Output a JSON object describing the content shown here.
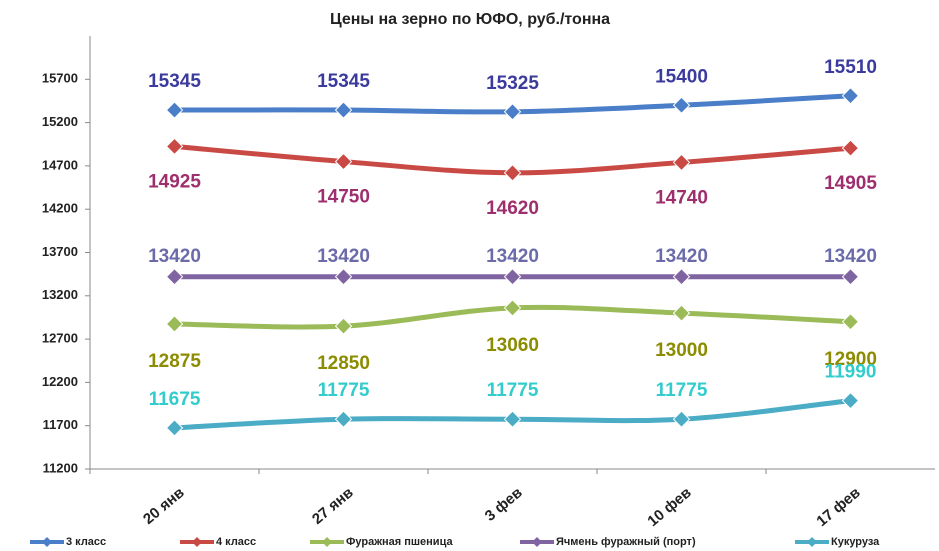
{
  "chart_data": {
    "type": "line",
    "title": "Цены на зерно по ЮФО, руб./тонна",
    "categories": [
      "20 янв",
      "27 янв",
      "3 фев",
      "10 фев",
      "17 фев"
    ],
    "series": [
      {
        "name": "3 класс",
        "color": "#4a7ec8",
        "label_color": "#3b3b9e",
        "values": [
          15345,
          15345,
          15325,
          15400,
          15510
        ]
      },
      {
        "name": "4 класс",
        "color": "#c94a45",
        "label_color": "#9e2f6e",
        "values": [
          14925,
          14750,
          14620,
          14740,
          14905
        ]
      },
      {
        "name": "Фуражная пшеница",
        "color": "#9bbb59",
        "label_color": "#8c8c00",
        "values": [
          12875,
          12850,
          13060,
          13000,
          12900
        ]
      },
      {
        "name": "Ячмень фуражный (порт)",
        "color": "#8064a2",
        "label_color": "#6b6baa",
        "values": [
          13420,
          13420,
          13420,
          13420,
          13420
        ]
      },
      {
        "name": "Кукуруза",
        "color": "#4bacc6",
        "label_color": "#33cccc",
        "values": [
          11675,
          11775,
          11775,
          11775,
          11990
        ]
      }
    ],
    "ylim": [
      11200,
      16200
    ],
    "yticks": [
      11200,
      11700,
      12200,
      12700,
      13200,
      13700,
      14200,
      14700,
      15200,
      15700
    ],
    "legend": "bottom",
    "data_labels": true
  }
}
